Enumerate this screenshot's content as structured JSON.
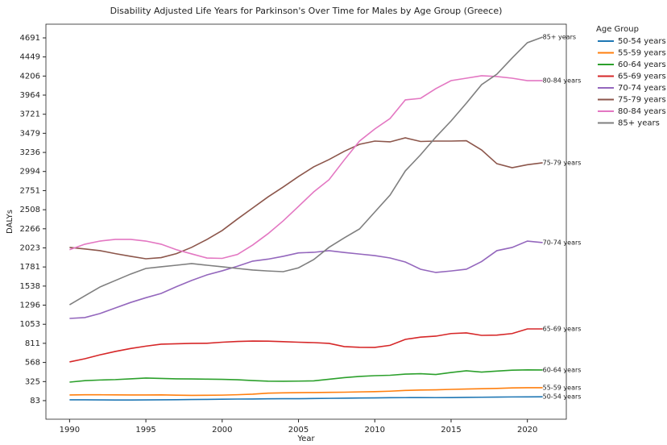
{
  "chart_data": {
    "type": "line",
    "title": "Disability Adjusted Life Years for Parkinson's Over Time for Males by Age Group (Greece)",
    "x_label": "Year",
    "y_label": "DALYs",
    "legend_title": "Age Group",
    "legend_position": "outside-right",
    "grid": false,
    "x": [
      1990,
      1991,
      1992,
      1993,
      1994,
      1995,
      1996,
      1997,
      1998,
      1999,
      2000,
      2001,
      2002,
      2003,
      2004,
      2005,
      2006,
      2007,
      2008,
      2009,
      2010,
      2011,
      2012,
      2013,
      2014,
      2015,
      2016,
      2017,
      2018,
      2019,
      2020,
      2021
    ],
    "xlim": [
      1988.45,
      2022.55
    ],
    "xticks": [
      1990,
      1995,
      2000,
      2005,
      2010,
      2015,
      2020
    ],
    "ylim": [
      -153,
      4865
    ],
    "yticks": [
      83,
      325,
      568,
      811,
      1053,
      1296,
      1538,
      1781,
      2023,
      2266,
      2508,
      2751,
      2994,
      3236,
      3479,
      3721,
      3964,
      4206,
      4449,
      4691
    ],
    "series": [
      {
        "name": "50-54 years",
        "color": "#1f77b4",
        "values": [
          93,
          93,
          92,
          91,
          91,
          92,
          93,
          95,
          97,
          99,
          101,
          103,
          104,
          106,
          107,
          108,
          110,
          112,
          114,
          116,
          118,
          120,
          121,
          122,
          121,
          122,
          124,
          126,
          128,
          130,
          131,
          132
        ]
      },
      {
        "name": "55-59 years",
        "color": "#ff7f0e",
        "values": [
          155,
          157,
          157,
          156,
          155,
          155,
          156,
          152,
          150,
          151,
          153,
          158,
          165,
          178,
          182,
          184,
          186,
          188,
          190,
          194,
          197,
          203,
          212,
          218,
          220,
          226,
          230,
          234,
          238,
          244,
          247,
          247
        ]
      },
      {
        "name": "60-64 years",
        "color": "#2ca02c",
        "values": [
          318,
          337,
          345,
          350,
          360,
          370,
          365,
          360,
          358,
          356,
          353,
          348,
          338,
          330,
          329,
          331,
          334,
          355,
          375,
          390,
          400,
          405,
          420,
          425,
          415,
          440,
          462,
          445,
          458,
          470,
          474,
          472
        ]
      },
      {
        "name": "65-69 years",
        "color": "#d62728",
        "values": [
          575,
          615,
          665,
          708,
          745,
          775,
          800,
          805,
          810,
          812,
          825,
          835,
          840,
          838,
          832,
          825,
          820,
          810,
          769,
          760,
          759,
          785,
          861,
          890,
          902,
          935,
          943,
          912,
          915,
          935,
          994,
          994
        ]
      },
      {
        "name": "70-74 years",
        "color": "#9467bd",
        "values": [
          1127,
          1138,
          1190,
          1260,
          1330,
          1390,
          1445,
          1530,
          1610,
          1680,
          1732,
          1790,
          1855,
          1880,
          1916,
          1960,
          1967,
          1988,
          1965,
          1945,
          1925,
          1895,
          1844,
          1752,
          1711,
          1730,
          1752,
          1850,
          1988,
          2029,
          2110,
          2090
        ]
      },
      {
        "name": "75-79 years",
        "color": "#8c564b",
        "values": [
          2029,
          2010,
          1988,
          1950,
          1916,
          1885,
          1900,
          1950,
          2030,
          2130,
          2244,
          2390,
          2530,
          2670,
          2797,
          2930,
          3053,
          3145,
          3250,
          3339,
          3380,
          3370,
          3421,
          3375,
          3380,
          3380,
          3385,
          3267,
          3093,
          3042,
          3080,
          3104
        ]
      },
      {
        "name": "80-84 years",
        "color": "#e377c2",
        "values": [
          2000,
          2070,
          2110,
          2131,
          2131,
          2110,
          2070,
          2000,
          1947,
          1895,
          1890,
          1940,
          2060,
          2203,
          2367,
          2550,
          2735,
          2889,
          3140,
          3380,
          3534,
          3667,
          3903,
          3923,
          4046,
          4148,
          4179,
          4210,
          4200,
          4179,
          4148,
          4148
        ]
      },
      {
        "name": "85+ years",
        "color": "#7f7f7f",
        "values": [
          1301,
          1414,
          1527,
          1609,
          1691,
          1762,
          1783,
          1803,
          1824,
          1803,
          1783,
          1762,
          1742,
          1730,
          1721,
          1770,
          1875,
          2030,
          2151,
          2264,
          2479,
          2694,
          3001,
          3206,
          3431,
          3636,
          3861,
          4097,
          4230,
          4435,
          4630,
          4701
        ]
      }
    ]
  }
}
